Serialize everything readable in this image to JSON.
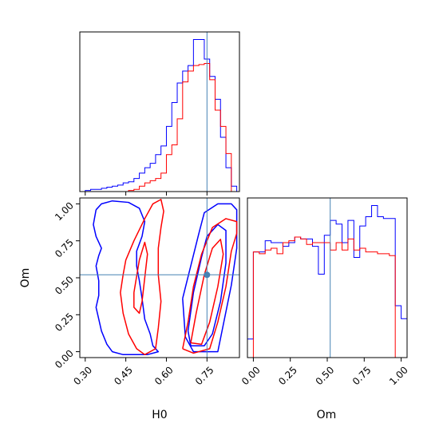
{
  "chart_data": [
    {
      "type": "histogram",
      "panel": "top-left",
      "parameter": "H0",
      "xlim": [
        0.28,
        0.87
      ],
      "truth": 0.75,
      "series": [
        {
          "color": "#0000ff",
          "bin_edges": [
            0.3,
            0.32,
            0.34,
            0.36,
            0.38,
            0.4,
            0.42,
            0.44,
            0.46,
            0.48,
            0.5,
            0.52,
            0.54,
            0.56,
            0.58,
            0.6,
            0.62,
            0.64,
            0.66,
            0.68,
            0.7,
            0.72,
            0.74,
            0.76,
            0.78,
            0.8,
            0.82,
            0.84,
            0.86
          ],
          "counts": [
            1,
            2,
            2,
            3,
            4,
            5,
            6,
            8,
            9,
            12,
            17,
            22,
            26,
            34,
            42,
            60,
            82,
            100,
            111,
            116,
            140,
            140,
            122,
            106,
            85,
            50,
            22,
            5
          ]
        },
        {
          "color": "#ff0000",
          "bin_edges": [
            0.3,
            0.32,
            0.34,
            0.36,
            0.38,
            0.4,
            0.42,
            0.44,
            0.46,
            0.48,
            0.5,
            0.52,
            0.54,
            0.56,
            0.58,
            0.6,
            0.62,
            0.64,
            0.66,
            0.68,
            0.7,
            0.72,
            0.74,
            0.76,
            0.78,
            0.8,
            0.82,
            0.84,
            0.86
          ],
          "counts": [
            0,
            0,
            0,
            0,
            0,
            0,
            0,
            0,
            1,
            2,
            5,
            8,
            10,
            12,
            17,
            34,
            43,
            67,
            101,
            111,
            116,
            117,
            118,
            103,
            75,
            60,
            35,
            0
          ]
        }
      ]
    },
    {
      "type": "contour",
      "panel": "bottom-left",
      "x_param": "H0",
      "y_param": "Om",
      "xlabel": "H0",
      "ylabel": "Om",
      "xlim": [
        0.28,
        0.87
      ],
      "ylim": [
        -0.04,
        1.04
      ],
      "xticks": [
        "0.30",
        "0.45",
        "0.60",
        "0.75"
      ],
      "yticks": [
        "0.00",
        "0.25",
        "0.50",
        "0.75",
        "1.00"
      ],
      "truth": [
        0.75,
        0.52
      ],
      "series": [
        {
          "color": "#0000ff",
          "contours": [
            [
              [
                0.34,
                0.96
              ],
              [
                0.36,
                1.0
              ],
              [
                0.4,
                1.02
              ],
              [
                0.46,
                1.01
              ],
              [
                0.5,
                0.97
              ],
              [
                0.52,
                0.88
              ],
              [
                0.51,
                0.78
              ],
              [
                0.49,
                0.68
              ],
              [
                0.49,
                0.58
              ],
              [
                0.5,
                0.48
              ],
              [
                0.51,
                0.36
              ],
              [
                0.52,
                0.22
              ],
              [
                0.54,
                0.12
              ],
              [
                0.55,
                0.04
              ],
              [
                0.57,
                0.0
              ],
              [
                0.53,
                -0.02
              ],
              [
                0.44,
                -0.02
              ],
              [
                0.4,
                0.0
              ],
              [
                0.38,
                0.05
              ],
              [
                0.36,
                0.14
              ],
              [
                0.35,
                0.22
              ],
              [
                0.34,
                0.3
              ],
              [
                0.35,
                0.38
              ],
              [
                0.35,
                0.48
              ],
              [
                0.34,
                0.58
              ],
              [
                0.35,
                0.65
              ],
              [
                0.36,
                0.7
              ],
              [
                0.34,
                0.78
              ],
              [
                0.33,
                0.86
              ],
              [
                0.34,
                0.96
              ]
            ],
            [
              [
                0.66,
                0.36
              ],
              [
                0.69,
                0.58
              ],
              [
                0.72,
                0.8
              ],
              [
                0.74,
                0.94
              ],
              [
                0.79,
                1.0
              ],
              [
                0.84,
                1.0
              ],
              [
                0.86,
                0.96
              ],
              [
                0.86,
                0.7
              ],
              [
                0.84,
                0.45
              ],
              [
                0.81,
                0.18
              ],
              [
                0.79,
                0.0
              ],
              [
                0.7,
                0.0
              ],
              [
                0.67,
                0.1
              ],
              [
                0.66,
                0.36
              ]
            ],
            [
              [
                0.68,
                0.14
              ],
              [
                0.7,
                0.4
              ],
              [
                0.73,
                0.64
              ],
              [
                0.75,
                0.78
              ],
              [
                0.79,
                0.86
              ],
              [
                0.82,
                0.82
              ],
              [
                0.82,
                0.6
              ],
              [
                0.8,
                0.34
              ],
              [
                0.77,
                0.12
              ],
              [
                0.74,
                0.04
              ],
              [
                0.69,
                0.04
              ],
              [
                0.68,
                0.14
              ]
            ]
          ]
        },
        {
          "color": "#ff0000",
          "contours": [
            [
              [
                0.45,
                0.62
              ],
              [
                0.48,
                0.75
              ],
              [
                0.52,
                0.9
              ],
              [
                0.55,
                1.0
              ],
              [
                0.58,
                1.03
              ],
              [
                0.59,
                0.95
              ],
              [
                0.58,
                0.84
              ],
              [
                0.57,
                0.7
              ],
              [
                0.57,
                0.52
              ],
              [
                0.58,
                0.34
              ],
              [
                0.57,
                0.16
              ],
              [
                0.56,
                0.02
              ],
              [
                0.52,
                -0.02
              ],
              [
                0.49,
                0.02
              ],
              [
                0.46,
                0.12
              ],
              [
                0.44,
                0.26
              ],
              [
                0.43,
                0.4
              ],
              [
                0.44,
                0.52
              ],
              [
                0.45,
                0.62
              ]
            ],
            [
              [
                0.48,
                0.4
              ],
              [
                0.5,
                0.62
              ],
              [
                0.52,
                0.74
              ],
              [
                0.53,
                0.66
              ],
              [
                0.52,
                0.5
              ],
              [
                0.51,
                0.34
              ],
              [
                0.5,
                0.26
              ],
              [
                0.48,
                0.3
              ],
              [
                0.48,
                0.4
              ]
            ],
            [
              [
                0.66,
                0.02
              ],
              [
                0.68,
                0.2
              ],
              [
                0.7,
                0.44
              ],
              [
                0.73,
                0.66
              ],
              [
                0.77,
                0.84
              ],
              [
                0.82,
                0.9
              ],
              [
                0.86,
                0.88
              ],
              [
                0.86,
                0.8
              ],
              [
                0.84,
                0.68
              ],
              [
                0.82,
                0.44
              ],
              [
                0.79,
                0.2
              ],
              [
                0.76,
                0.02
              ],
              [
                0.7,
                -0.01
              ],
              [
                0.66,
                0.02
              ]
            ],
            [
              [
                0.69,
                0.06
              ],
              [
                0.71,
                0.26
              ],
              [
                0.74,
                0.52
              ],
              [
                0.77,
                0.7
              ],
              [
                0.8,
                0.76
              ],
              [
                0.81,
                0.66
              ],
              [
                0.79,
                0.44
              ],
              [
                0.76,
                0.2
              ],
              [
                0.73,
                0.05
              ],
              [
                0.69,
                0.06
              ]
            ]
          ]
        }
      ]
    },
    {
      "type": "histogram",
      "panel": "bottom-right",
      "parameter": "Om",
      "xlabel": "Om",
      "xlim": [
        -0.04,
        1.04
      ],
      "xticks": [
        "0.00",
        "0.25",
        "0.50",
        "0.75",
        "1.00"
      ],
      "truth": 0.52,
      "series": [
        {
          "color": "#0000ff",
          "bin_edges": [
            -0.04,
            0.0,
            0.04,
            0.08,
            0.12,
            0.16,
            0.2,
            0.24,
            0.28,
            0.32,
            0.36,
            0.4,
            0.44,
            0.48,
            0.52,
            0.56,
            0.6,
            0.64,
            0.68,
            0.72,
            0.76,
            0.8,
            0.84,
            0.88,
            0.92,
            0.96,
            1.0,
            1.04
          ],
          "counts": [
            10,
            57,
            57,
            63,
            62,
            62,
            60,
            62,
            65,
            64,
            64,
            60,
            45,
            66,
            74,
            72,
            62,
            74,
            54,
            71,
            76,
            82,
            76,
            75,
            75,
            28,
            21
          ]
        },
        {
          "color": "#ff0000",
          "bin_edges": [
            -0.04,
            0.0,
            0.04,
            0.08,
            0.12,
            0.16,
            0.2,
            0.24,
            0.28,
            0.32,
            0.36,
            0.4,
            0.44,
            0.48,
            0.52,
            0.56,
            0.6,
            0.64,
            0.68,
            0.72,
            0.76,
            0.8,
            0.84,
            0.88,
            0.92,
            0.96,
            1.0,
            1.04
          ],
          "counts": [
            0,
            57,
            56,
            58,
            59,
            56,
            62,
            63,
            65,
            64,
            61,
            62,
            62,
            62,
            58,
            62,
            58,
            64,
            58,
            59,
            57,
            57,
            56,
            56,
            55,
            0,
            0
          ]
        }
      ]
    }
  ]
}
